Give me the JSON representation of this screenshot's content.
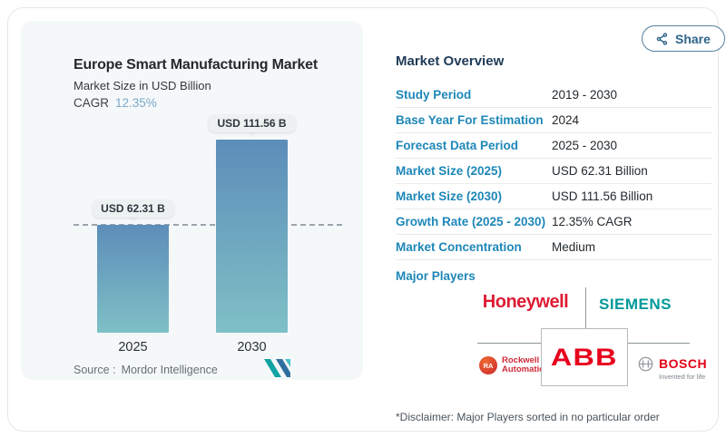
{
  "share": {
    "label": "Share"
  },
  "chart_data": {
    "type": "bar",
    "title": "Europe Smart Manufacturing Market",
    "subtitle": "Market Size in USD Billion",
    "cagr_label": "CAGR",
    "cagr_value": "12.35%",
    "categories": [
      "2025",
      "2030"
    ],
    "values": [
      62.31,
      111.56
    ],
    "data_labels": [
      "USD 62.31 B",
      "USD 111.56 B"
    ],
    "ylim": [
      0,
      111.56
    ],
    "reference_line": 62.31,
    "grid": false,
    "legend": "none",
    "bar_color_top": "#5c8db9",
    "bar_color_bottom": "#7fc0c6",
    "source_label": "Source :",
    "source_value": "Mordor Intelligence"
  },
  "overview": {
    "heading": "Market Overview",
    "rows": [
      {
        "label": "Study Period",
        "value": "2019 - 2030"
      },
      {
        "label": "Base Year For Estimation",
        "value": "2024"
      },
      {
        "label": "Forecast Data Period",
        "value": "2025 - 2030"
      },
      {
        "label": "Market Size (2025)",
        "value": "USD 62.31 Billion"
      },
      {
        "label": "Market Size (2030)",
        "value": "USD 111.56 Billion"
      },
      {
        "label": "Growth Rate (2025 - 2030)",
        "value": "12.35% CAGR"
      },
      {
        "label": "Market Concentration",
        "value": "Medium"
      }
    ],
    "major_players_label": "Major Players",
    "disclaimer": "*Disclaimer: Major Players sorted in no particular order"
  },
  "players": {
    "honeywell": "Honeywell",
    "siemens": "SIEMENS",
    "abb": "ABB",
    "rockwell_badge": "RA",
    "rockwell_line1": "Rockwell",
    "rockwell_line2": "Automation",
    "bosch": "BOSCH",
    "bosch_tagline": "Invented for life"
  },
  "colors": {
    "accent_blue": "#1e87b8",
    "heading_navy": "#1e3b57",
    "share_blue": "#2d6488",
    "honeywell_red": "#dd1b33",
    "siemens_teal": "#00999a",
    "abb_red": "#e8001c",
    "rockwell_red": "#cf2a39",
    "bosch_red": "#e20015",
    "mordor_teal": "#11a3a3",
    "mordor_blue": "#2f6f9f"
  }
}
